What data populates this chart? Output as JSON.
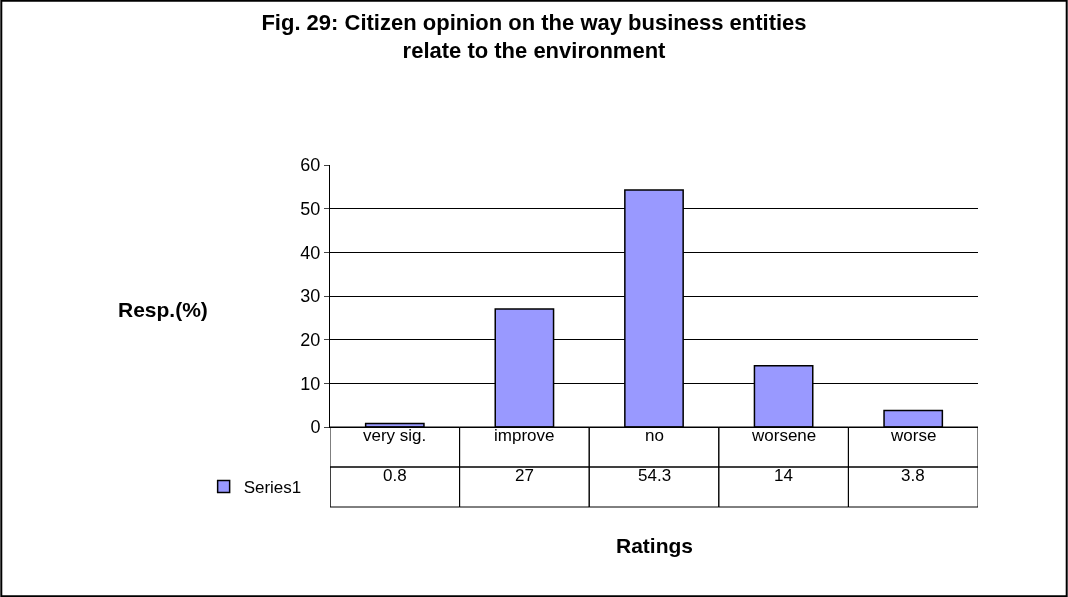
{
  "chart_data": {
    "type": "bar",
    "title": "Fig. 29: Citizen opinion on the way business entities\nrelate to the environment",
    "categories": [
      "very sig.",
      "improve",
      "no",
      "worsene",
      "worse"
    ],
    "series": [
      {
        "name": "Series1",
        "color": "#9999ff",
        "values": [
          0.8,
          27,
          54.3,
          14,
          3.8
        ]
      }
    ],
    "xlabel": "Ratings",
    "ylabel": "Resp.(%)",
    "ylim": [
      0,
      60
    ],
    "yticks": [
      0,
      10,
      20,
      30,
      40,
      50,
      60
    ],
    "grid": "y",
    "data_labels": true,
    "legend": "bottom left"
  }
}
